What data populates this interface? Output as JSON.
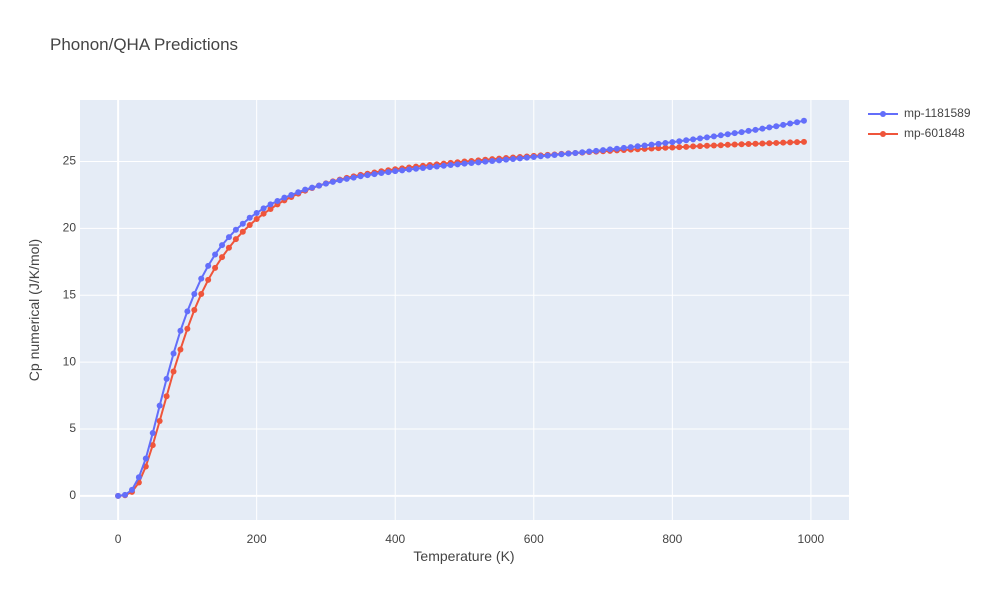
{
  "chart_data": {
    "type": "line",
    "title": "Phonon/QHA Predictions",
    "xlabel": "Temperature (K)",
    "ylabel": "Cp numerical (J/K/mol)",
    "xlim": [
      -55,
      1055
    ],
    "ylim": [
      -1.8,
      29.6
    ],
    "xticks": [
      0,
      200,
      400,
      600,
      800,
      1000
    ],
    "xtick_labels": [
      "0",
      "200",
      "400",
      "600",
      "800",
      "1000"
    ],
    "yticks": [
      0,
      5,
      10,
      15,
      20,
      25
    ],
    "ytick_labels": [
      "0",
      "5",
      "10",
      "15",
      "20",
      "25"
    ],
    "grid": true,
    "legend_position": "top-right",
    "colors": {
      "plot_bg": "#e5ecf6",
      "grid": "#ffffff",
      "text": "#444444",
      "title": "#444444"
    },
    "x": [
      0,
      10,
      20,
      30,
      40,
      50,
      60,
      70,
      80,
      90,
      100,
      110,
      120,
      130,
      140,
      150,
      160,
      170,
      180,
      190,
      200,
      210,
      220,
      230,
      240,
      250,
      260,
      270,
      280,
      290,
      300,
      310,
      320,
      330,
      340,
      350,
      360,
      370,
      380,
      390,
      400,
      410,
      420,
      430,
      440,
      450,
      460,
      470,
      480,
      490,
      500,
      510,
      520,
      530,
      540,
      550,
      560,
      570,
      580,
      590,
      600,
      610,
      620,
      630,
      640,
      650,
      660,
      670,
      680,
      690,
      700,
      710,
      720,
      730,
      740,
      750,
      760,
      770,
      780,
      790,
      800,
      810,
      820,
      830,
      840,
      850,
      860,
      870,
      880,
      890,
      900,
      910,
      920,
      930,
      940,
      950,
      960,
      970,
      980,
      990
    ],
    "series": [
      {
        "name": "mp-1181589",
        "color": "#636efa",
        "values": [
          0,
          0.08,
          0.45,
          1.4,
          2.8,
          4.7,
          6.75,
          8.75,
          10.65,
          12.35,
          13.8,
          15.1,
          16.25,
          17.2,
          18.05,
          18.75,
          19.35,
          19.9,
          20.35,
          20.8,
          21.15,
          21.5,
          21.8,
          22.05,
          22.3,
          22.5,
          22.7,
          22.9,
          23.05,
          23.2,
          23.35,
          23.48,
          23.6,
          23.7,
          23.8,
          23.9,
          23.98,
          24.06,
          24.14,
          24.21,
          24.28,
          24.34,
          24.4,
          24.46,
          24.52,
          24.58,
          24.63,
          24.68,
          24.74,
          24.79,
          24.84,
          24.89,
          24.94,
          24.99,
          25.04,
          25.09,
          25.14,
          25.19,
          25.24,
          25.29,
          25.34,
          25.39,
          25.44,
          25.49,
          25.54,
          25.59,
          25.64,
          25.69,
          25.75,
          25.8,
          25.85,
          25.91,
          25.96,
          26.02,
          26.08,
          26.14,
          26.2,
          26.26,
          26.32,
          26.39,
          26.45,
          26.52,
          26.59,
          26.66,
          26.73,
          26.81,
          26.88,
          26.96,
          27.04,
          27.12,
          27.2,
          27.29,
          27.37,
          27.46,
          27.55,
          27.64,
          27.74,
          27.84,
          27.94,
          28.05
        ]
      },
      {
        "name": "mp-601848",
        "color": "#ef553b",
        "values": [
          0,
          0.05,
          0.3,
          1.0,
          2.2,
          3.8,
          5.6,
          7.45,
          9.3,
          10.95,
          12.5,
          13.9,
          15.1,
          16.15,
          17.05,
          17.85,
          18.55,
          19.2,
          19.75,
          20.25,
          20.7,
          21.1,
          21.45,
          21.8,
          22.1,
          22.35,
          22.6,
          22.82,
          23.02,
          23.2,
          23.37,
          23.52,
          23.65,
          23.78,
          23.89,
          24.0,
          24.09,
          24.18,
          24.27,
          24.35,
          24.42,
          24.49,
          24.55,
          24.62,
          24.68,
          24.74,
          24.79,
          24.84,
          24.9,
          24.95,
          25.0,
          25.04,
          25.09,
          25.13,
          25.18,
          25.22,
          25.26,
          25.3,
          25.34,
          25.38,
          25.42,
          25.46,
          25.5,
          25.53,
          25.57,
          25.61,
          25.64,
          25.67,
          25.71,
          25.74,
          25.77,
          25.8,
          25.83,
          25.86,
          25.89,
          25.92,
          25.95,
          25.97,
          26.0,
          26.03,
          26.05,
          26.08,
          26.1,
          26.13,
          26.15,
          26.18,
          26.2,
          26.22,
          26.25,
          26.27,
          26.29,
          26.31,
          26.33,
          26.35,
          26.37,
          26.39,
          26.41,
          26.43,
          26.45,
          26.47
        ]
      }
    ]
  }
}
